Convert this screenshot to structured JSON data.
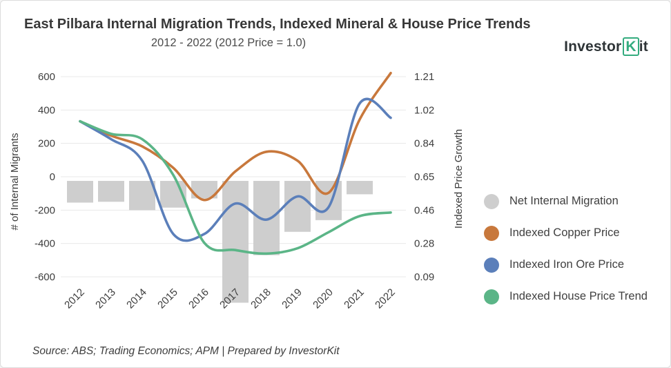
{
  "header": {
    "title": "East Pilbara Internal Migration Trends, Indexed Mineral & House Price Trends",
    "subtitle": "2012 - 2022 (2012 Price = 1.0)",
    "logo": {
      "part1": "Investor",
      "part2": "K",
      "part3": "it"
    }
  },
  "chart_data": {
    "type": "bar+line combo",
    "categories": [
      "2012",
      "2013",
      "2014",
      "2015",
      "2016",
      "2017",
      "2018",
      "2019",
      "2020",
      "2021",
      "2022"
    ],
    "left_axis": {
      "label": "# of Internal Migrants",
      "ticks": [
        600,
        400,
        200,
        0,
        -200,
        -400,
        -600
      ],
      "range": [
        -810,
        660
      ]
    },
    "right_axis": {
      "label": "Indexed Price Growth",
      "ticks": [
        1.21,
        1.02,
        0.84,
        0.65,
        0.46,
        0.28,
        0.09
      ],
      "range": [
        0.09,
        1.21
      ]
    },
    "grid": "horizontal",
    "legend_position": "right",
    "series": [
      {
        "name": "Net Internal Migration",
        "type": "bar",
        "axis": "left",
        "color": "#cecece",
        "values": [
          -155,
          -150,
          -200,
          -185,
          -130,
          -755,
          -470,
          -330,
          -260,
          -105,
          null
        ]
      },
      {
        "name": "Indexed Copper Price",
        "type": "line",
        "axis": "right",
        "color": "#c8783c",
        "values": [
          0.96,
          0.88,
          0.82,
          0.7,
          0.52,
          0.68,
          0.79,
          0.74,
          0.56,
          0.97,
          1.23
        ]
      },
      {
        "name": "Indexed Iron Ore Price",
        "type": "line",
        "axis": "right",
        "color": "#5b7fba",
        "values": [
          0.96,
          0.86,
          0.74,
          0.33,
          0.33,
          0.5,
          0.41,
          0.54,
          0.48,
          1.06,
          0.98
        ]
      },
      {
        "name": "Indexed House Price Trend",
        "type": "line",
        "axis": "right",
        "color": "#5bb587",
        "values": [
          0.96,
          0.89,
          0.86,
          0.66,
          0.28,
          0.24,
          0.22,
          0.25,
          0.34,
          0.43,
          0.45
        ]
      }
    ]
  },
  "legend": {
    "items": [
      {
        "label": "Net Internal Migration",
        "color": "#cecece"
      },
      {
        "label": "Indexed Copper Price",
        "color": "#c8783c"
      },
      {
        "label": "Indexed Iron Ore Price",
        "color": "#5b7fba"
      },
      {
        "label": "Indexed House Price Trend",
        "color": "#5bb587"
      }
    ]
  },
  "footer": {
    "source": "Source: ABS; Trading Economics; APM | Prepared by InvestorKit"
  }
}
